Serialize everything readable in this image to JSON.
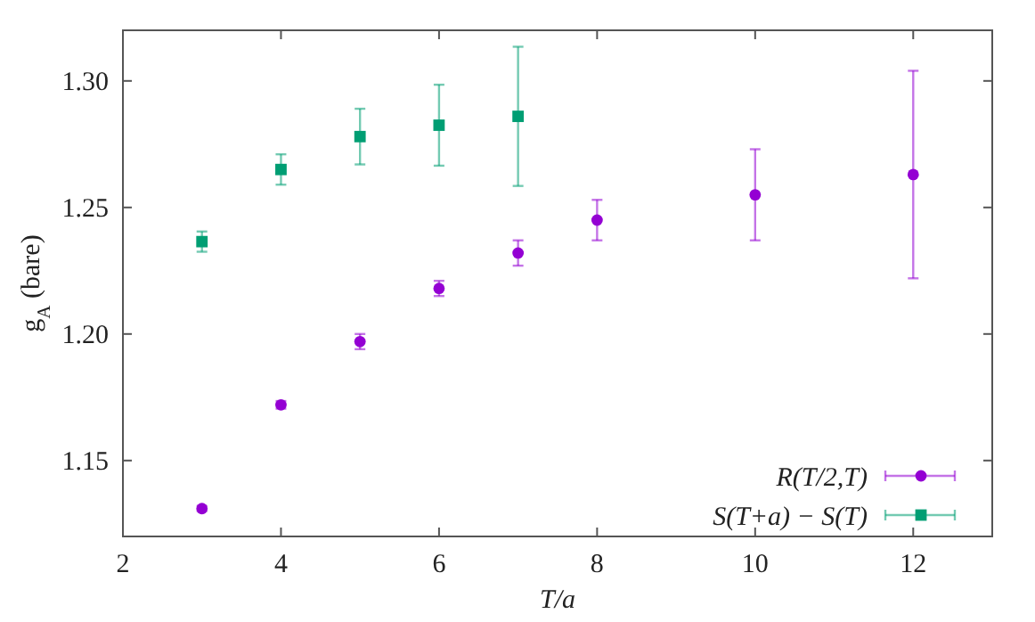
{
  "chart_data": {
    "type": "scatter",
    "xlabel": "T/a",
    "ylabel": "g$_{A}$ (bare)",
    "xlim": [
      2,
      13
    ],
    "xticks": [
      2,
      4,
      6,
      8,
      10,
      12
    ],
    "ylim": [
      1.12,
      1.32
    ],
    "yticks": [
      {
        "value": 1.15,
        "label": "1.15"
      },
      {
        "value": 1.2,
        "label": "1.20"
      },
      {
        "value": 1.25,
        "label": "1.25"
      },
      {
        "value": 1.3,
        "label": "1.30"
      }
    ],
    "grid": false,
    "legend": "bottom right",
    "series": [
      {
        "name": "R(T/2,T)",
        "color": "#9400d3",
        "marker": "circle",
        "x": [
          3,
          4,
          5,
          6,
          7,
          8,
          10,
          12
        ],
        "values": [
          1.131,
          1.172,
          1.197,
          1.218,
          1.232,
          1.245,
          1.255,
          1.263
        ],
        "errors": [
          0.001,
          0.0015,
          0.003,
          0.003,
          0.005,
          0.008,
          0.018,
          0.041
        ]
      },
      {
        "name": "S(T+a) − S(T)",
        "color": "#009e73",
        "marker": "square",
        "x": [
          3,
          4,
          5,
          6,
          7
        ],
        "values": [
          1.2365,
          1.265,
          1.278,
          1.2825,
          1.286
        ],
        "errors": [
          0.004,
          0.006,
          0.011,
          0.016,
          0.0275
        ]
      }
    ]
  }
}
